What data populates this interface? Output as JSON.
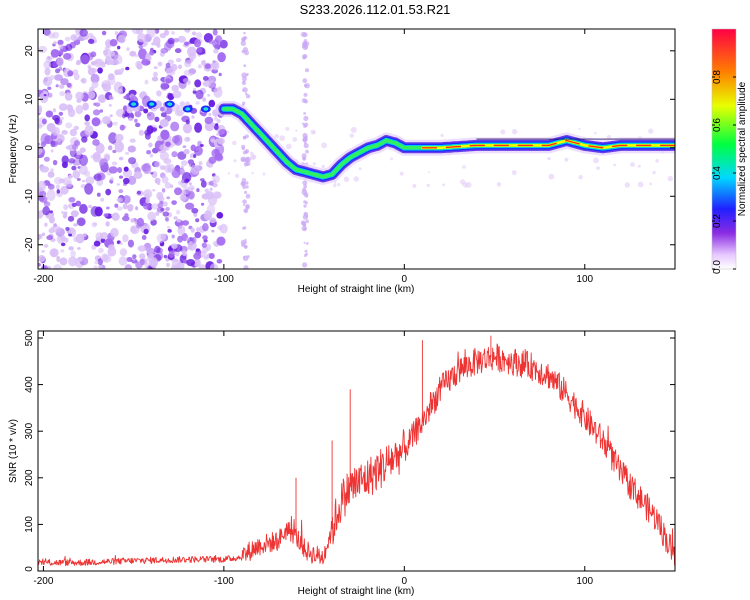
{
  "title": "S233.2026.112.01.53.R21",
  "chart_data": [
    {
      "type": "heatmap",
      "xlabel": "Height of straight line (km)",
      "ylabel": "Frequency (Hz)",
      "xlim": [
        -203,
        150
      ],
      "ylim": [
        -25,
        24.5
      ],
      "xticks": [
        -200,
        -100,
        0,
        100
      ],
      "yticks": [
        -20,
        -10,
        0,
        10,
        20
      ],
      "colorbar": {
        "label": "Normalized spectral amplitude",
        "range": [
          0,
          1
        ],
        "ticks": [
          "0.0",
          "0.2",
          "0.4",
          "0.6",
          "0.8"
        ],
        "tick_values": [
          0.0,
          0.2,
          0.4,
          0.6,
          0.8
        ]
      },
      "ridge": {
        "x": [
          -100,
          -95,
          -90,
          -85,
          -80,
          -75,
          -70,
          -65,
          -60,
          -55,
          -50,
          -45,
          -40,
          -35,
          -30,
          -25,
          -20,
          -15,
          -10,
          -5,
          0,
          10,
          20,
          40,
          60,
          80,
          90,
          100,
          110,
          120,
          150
        ],
        "y": [
          8,
          8,
          7,
          5,
          3,
          1,
          -1,
          -3,
          -4.5,
          -5,
          -5.5,
          -6,
          -5.5,
          -3.5,
          -2,
          -1,
          0,
          0.5,
          1.5,
          1,
          0,
          0,
          0,
          0.5,
          0.5,
          0.5,
          1.5,
          0.5,
          0,
          0.5,
          0.5
        ]
      },
      "scatter_ridge": {
        "x": [
          -150,
          -140,
          -130,
          -120,
          -110
        ],
        "y": [
          9,
          9,
          9,
          8,
          8
        ]
      }
    },
    {
      "type": "line",
      "xlabel": "Height of straight line (km)",
      "ylabel": "SNR (10 * v/v)",
      "xlim": [
        -203,
        150
      ],
      "ylim": [
        0,
        515
      ],
      "xticks": [
        -200,
        -100,
        0,
        100
      ],
      "yticks": [
        0,
        100,
        200,
        300,
        400,
        500
      ],
      "color": "#ee3333",
      "envelope": {
        "x": [
          -203,
          -180,
          -150,
          -120,
          -100,
          -90,
          -85,
          -80,
          -75,
          -70,
          -65,
          -60,
          -55,
          -50,
          -45,
          -40,
          -35,
          -30,
          -20,
          -10,
          0,
          10,
          20,
          30,
          40,
          50,
          60,
          70,
          80,
          90,
          100,
          110,
          120,
          130,
          140,
          150
        ],
        "y": [
          18,
          18,
          22,
          25,
          25,
          30,
          45,
          55,
          60,
          65,
          90,
          75,
          45,
          35,
          30,
          90,
          150,
          180,
          200,
          230,
          260,
          320,
          390,
          430,
          450,
          460,
          450,
          440,
          420,
          380,
          330,
          280,
          210,
          160,
          110,
          30
        ]
      },
      "spikes": {
        "x": [
          -60,
          -40,
          -30,
          10,
          48
        ],
        "y": [
          200,
          280,
          390,
          495,
          505
        ]
      }
    }
  ]
}
